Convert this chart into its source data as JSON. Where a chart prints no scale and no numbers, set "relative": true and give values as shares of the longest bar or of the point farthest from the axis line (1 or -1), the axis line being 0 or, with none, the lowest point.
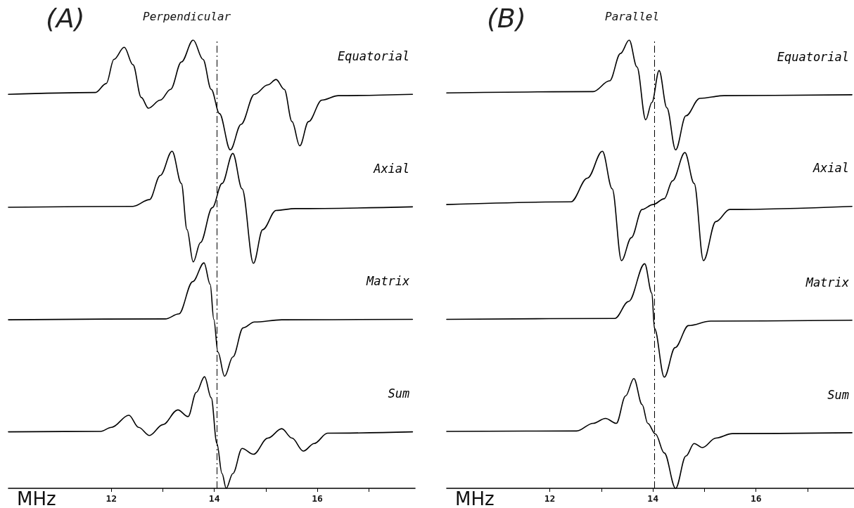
{
  "chart_data": [
    {
      "type": "line",
      "title": "(A)",
      "subtitle": "Perpendicular",
      "xlabel": "MHz",
      "relative": true,
      "xlim": [
        10,
        17.9
      ],
      "xticks": [
        12,
        {
          "value": 13,
          "label": null
        },
        14,
        {
          "value": 15,
          "label": null
        },
        16,
        {
          "value": 17,
          "label": null
        }
      ],
      "grid": false,
      "legend": false,
      "marker": "none",
      "line_style": "solid",
      "ref_lines": [
        {
          "axis": "x",
          "value": 14.05,
          "color": "#000000",
          "line_style": "dashed"
        }
      ],
      "series": [
        {
          "name": "Equatorial",
          "color": "#000000",
          "x": [
            10.0,
            11.69,
            11.9,
            12.05,
            12.25,
            12.42,
            12.58,
            12.72,
            12.95,
            13.15,
            13.36,
            13.59,
            13.78,
            13.94,
            14.1,
            14.31,
            14.52,
            14.78,
            15.04,
            15.2,
            15.36,
            15.51,
            15.66,
            15.83,
            16.09,
            16.41,
            17.85
          ],
          "values": [
            0.879,
            0.883,
            0.903,
            0.957,
            0.984,
            0.945,
            0.872,
            0.848,
            0.866,
            0.89,
            0.951,
            1.0,
            0.957,
            0.89,
            0.836,
            0.755,
            0.812,
            0.879,
            0.9,
            0.912,
            0.89,
            0.818,
            0.764,
            0.818,
            0.866,
            0.876,
            0.879
          ]
        },
        {
          "name": "Axial",
          "color": "#000000",
          "x": [
            10.0,
            12.42,
            12.74,
            12.95,
            13.18,
            13.36,
            13.47,
            13.59,
            13.73,
            13.96,
            14.15,
            14.36,
            14.54,
            14.76,
            14.94,
            15.2,
            15.57,
            17.85
          ],
          "values": [
            0.627,
            0.629,
            0.644,
            0.698,
            0.752,
            0.68,
            0.577,
            0.505,
            0.548,
            0.626,
            0.68,
            0.747,
            0.668,
            0.502,
            0.577,
            0.62,
            0.624,
            0.628
          ]
        },
        {
          "name": "Matrix",
          "color": "#000000",
          "x": [
            10.0,
            13.05,
            13.31,
            13.58,
            13.8,
            13.92,
            13.99,
            14.07,
            14.2,
            14.36,
            14.56,
            14.78,
            15.31,
            17.85
          ],
          "values": [
            0.376,
            0.378,
            0.389,
            0.461,
            0.503,
            0.455,
            0.377,
            0.304,
            0.25,
            0.293,
            0.358,
            0.371,
            0.376,
            0.377
          ]
        },
        {
          "name": "Sum",
          "color": "#000000",
          "x": [
            10.0,
            11.79,
            12.0,
            12.34,
            12.53,
            12.74,
            13.0,
            13.29,
            13.49,
            13.65,
            13.81,
            13.94,
            14.05,
            14.15,
            14.23,
            14.36,
            14.54,
            14.76,
            15.04,
            15.31,
            15.51,
            15.73,
            15.94,
            16.2,
            17.85
          ],
          "values": [
            0.126,
            0.127,
            0.136,
            0.163,
            0.136,
            0.118,
            0.142,
            0.175,
            0.16,
            0.214,
            0.249,
            0.202,
            0.1,
            0.033,
            0.0,
            0.033,
            0.089,
            0.076,
            0.112,
            0.133,
            0.112,
            0.083,
            0.1,
            0.123,
            0.126
          ]
        }
      ]
    },
    {
      "type": "line",
      "title": "(B)",
      "subtitle": "Parallel",
      "xlabel": "MHz",
      "relative": true,
      "xlim": [
        10,
        17.9
      ],
      "xticks": [
        12,
        {
          "value": 13,
          "label": null
        },
        14,
        {
          "value": 15,
          "label": null
        },
        16,
        {
          "value": 17,
          "label": null
        }
      ],
      "grid": false,
      "legend": false,
      "marker": "none",
      "line_style": "solid",
      "ref_lines": [
        {
          "axis": "x",
          "value": 14.03,
          "color": "#000000",
          "line_style": "dashed"
        }
      ],
      "series": [
        {
          "name": "Equatorial",
          "color": "#000000",
          "x": [
            10.0,
            12.84,
            13.16,
            13.37,
            13.54,
            13.69,
            13.86,
            13.98,
            14.12,
            14.27,
            14.44,
            14.64,
            14.91,
            15.38,
            17.86
          ],
          "values": [
            0.882,
            0.885,
            0.909,
            0.97,
            1.0,
            0.94,
            0.822,
            0.861,
            0.932,
            0.849,
            0.755,
            0.831,
            0.87,
            0.876,
            0.878
          ]
        },
        {
          "name": "Axial",
          "color": "#000000",
          "x": [
            10.0,
            12.41,
            12.73,
            13.02,
            13.21,
            13.39,
            13.58,
            13.79,
            14.0,
            14.22,
            14.38,
            14.62,
            14.8,
            14.98,
            15.22,
            15.49,
            17.86
          ],
          "values": [
            0.633,
            0.639,
            0.692,
            0.752,
            0.668,
            0.508,
            0.559,
            0.622,
            0.633,
            0.646,
            0.686,
            0.749,
            0.68,
            0.508,
            0.595,
            0.622,
            0.629
          ]
        },
        {
          "name": "Matrix",
          "color": "#000000",
          "x": [
            10.0,
            13.26,
            13.53,
            13.84,
            13.98,
            14.03,
            14.22,
            14.43,
            14.69,
            15.12,
            17.86
          ],
          "values": [
            0.377,
            0.379,
            0.417,
            0.501,
            0.435,
            0.357,
            0.248,
            0.314,
            0.363,
            0.373,
            0.375
          ]
        },
        {
          "name": "Sum",
          "color": "#000000",
          "x": [
            10.0,
            12.52,
            12.84,
            13.08,
            13.29,
            13.47,
            13.63,
            13.79,
            13.9,
            14.05,
            14.22,
            14.44,
            14.64,
            14.8,
            14.96,
            15.22,
            15.54,
            17.86
          ],
          "values": [
            0.127,
            0.128,
            0.145,
            0.156,
            0.145,
            0.206,
            0.245,
            0.187,
            0.145,
            0.121,
            0.079,
            0.0,
            0.072,
            0.1,
            0.091,
            0.112,
            0.122,
            0.124
          ]
        }
      ]
    }
  ]
}
